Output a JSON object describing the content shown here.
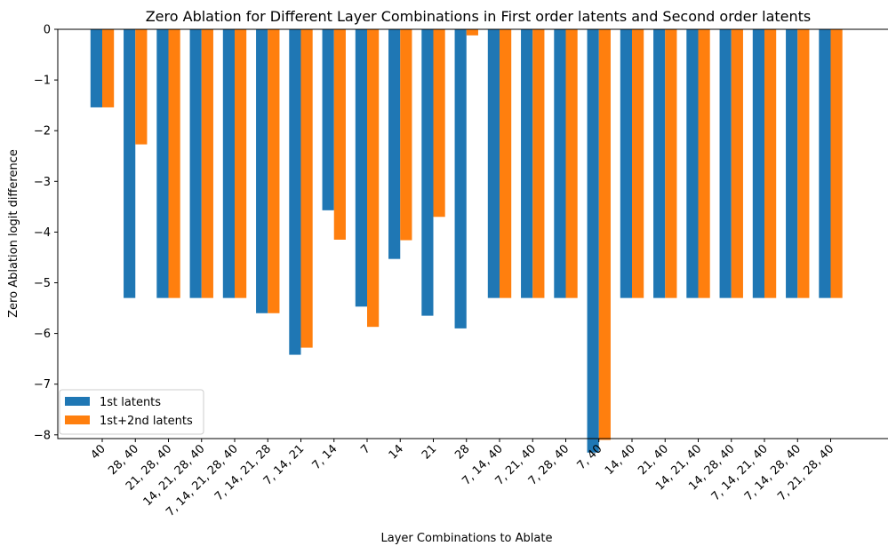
{
  "chart_data": {
    "type": "bar",
    "title": "Zero Ablation for Different Layer Combinations in First order latents and Second order latents",
    "xlabel": "Layer Combinations to Ablate",
    "ylabel": "Zero Ablation logit difference",
    "ylim": [
      -8.75,
      0
    ],
    "yticks": [
      0,
      -1,
      -2,
      -3,
      -4,
      -5,
      -6,
      -7,
      -8
    ],
    "ytick_labels": [
      "0",
      "−1",
      "−2",
      "−3",
      "−4",
      "−5",
      "−6",
      "−7",
      "−8"
    ],
    "grid": false,
    "legend_position": "lower-left",
    "categories": [
      "40",
      "28, 40",
      "21, 28, 40",
      "14, 21, 28, 40",
      "7, 14, 21, 28, 40",
      "7, 14, 21, 28",
      "7, 14, 21",
      "7, 14",
      "7",
      "14",
      "21",
      "28",
      "7, 14, 40",
      "7, 21, 40",
      "7, 28, 40",
      "7, 40",
      "14, 40",
      "21, 40",
      "14, 21, 40",
      "14, 28, 40",
      "7, 14, 21, 40",
      "7, 14, 28, 40",
      "7, 21, 28, 40"
    ],
    "series": [
      {
        "name": "1st latents",
        "color": "#1f77b4",
        "values": [
          -1.54,
          -5.3,
          -5.3,
          -5.3,
          -5.3,
          -5.6,
          -6.42,
          -3.57,
          -5.47,
          -4.53,
          -5.65,
          -5.9,
          -5.3,
          -5.3,
          -5.3,
          -8.35,
          -5.3,
          -5.3,
          -5.3,
          -5.3,
          -5.3,
          -5.3,
          -5.3
        ]
      },
      {
        "name": "1st+2nd latents",
        "color": "#ff7f0e",
        "values": [
          -1.54,
          -2.27,
          -5.3,
          -5.3,
          -5.3,
          -5.6,
          -6.28,
          -4.15,
          -5.87,
          -4.16,
          -3.7,
          -0.12,
          -5.3,
          -5.3,
          -5.3,
          -8.1,
          -5.3,
          -5.3,
          -5.3,
          -5.3,
          -5.3,
          -5.3,
          -5.3
        ]
      }
    ]
  }
}
